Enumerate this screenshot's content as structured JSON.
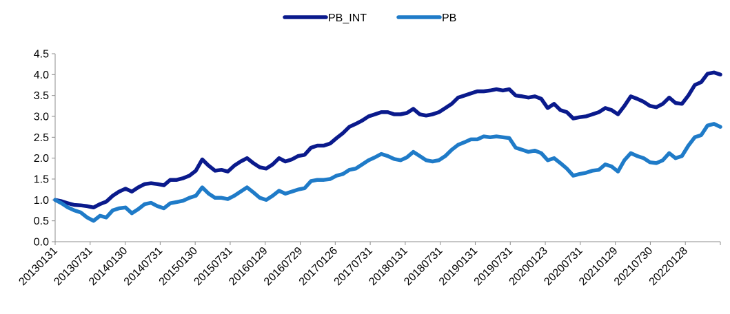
{
  "chart_data": {
    "type": "line",
    "title": "",
    "xlabel": "",
    "ylabel": "",
    "ylim": [
      0,
      4.5
    ],
    "yticks": [
      "0.0",
      "0.5",
      "1.0",
      "1.5",
      "2.0",
      "2.5",
      "3.0",
      "3.5",
      "4.0",
      "4.5"
    ],
    "xtick_labels": [
      "20130131",
      "20130731",
      "20140130",
      "20140731",
      "20150130",
      "20150731",
      "20160129",
      "20160729",
      "20170126",
      "20170731",
      "20180131",
      "20180731",
      "20190131",
      "20190731",
      "20200123",
      "20200731",
      "20210129",
      "20210730",
      "20220128"
    ],
    "grid": false,
    "legend_position": "top-center",
    "series": [
      {
        "name": "PB_INT",
        "color": "#0a1a8c",
        "values": [
          1.0,
          0.97,
          0.92,
          0.88,
          0.87,
          0.85,
          0.82,
          0.9,
          0.96,
          1.1,
          1.2,
          1.27,
          1.2,
          1.3,
          1.38,
          1.4,
          1.38,
          1.35,
          1.48,
          1.48,
          1.52,
          1.58,
          1.7,
          1.97,
          1.82,
          1.7,
          1.72,
          1.68,
          1.82,
          1.92,
          2.0,
          1.88,
          1.78,
          1.75,
          1.85,
          2.0,
          1.92,
          1.97,
          2.05,
          2.08,
          2.25,
          2.3,
          2.3,
          2.35,
          2.48,
          2.6,
          2.75,
          2.82,
          2.9,
          3.0,
          3.05,
          3.1,
          3.1,
          3.05,
          3.05,
          3.08,
          3.18,
          3.05,
          3.02,
          3.05,
          3.1,
          3.2,
          3.3,
          3.45,
          3.5,
          3.55,
          3.6,
          3.6,
          3.62,
          3.65,
          3.62,
          3.65,
          3.5,
          3.48,
          3.45,
          3.48,
          3.42,
          3.2,
          3.3,
          3.15,
          3.1,
          2.95,
          2.98,
          3.0,
          3.05,
          3.1,
          3.2,
          3.15,
          3.05,
          3.25,
          3.48,
          3.42,
          3.35,
          3.25,
          3.22,
          3.3,
          3.45,
          3.32,
          3.3,
          3.5,
          3.75,
          3.82,
          4.02,
          4.05,
          4.0
        ]
      },
      {
        "name": "PB",
        "color": "#1f7bc8",
        "values": [
          1.0,
          0.92,
          0.82,
          0.75,
          0.7,
          0.58,
          0.5,
          0.62,
          0.58,
          0.75,
          0.8,
          0.82,
          0.68,
          0.78,
          0.9,
          0.93,
          0.85,
          0.8,
          0.92,
          0.95,
          0.98,
          1.05,
          1.1,
          1.3,
          1.15,
          1.05,
          1.05,
          1.02,
          1.1,
          1.2,
          1.3,
          1.18,
          1.05,
          1.0,
          1.1,
          1.22,
          1.15,
          1.2,
          1.25,
          1.28,
          1.45,
          1.48,
          1.48,
          1.5,
          1.58,
          1.62,
          1.72,
          1.75,
          1.85,
          1.95,
          2.02,
          2.1,
          2.05,
          1.98,
          1.95,
          2.02,
          2.15,
          2.05,
          1.95,
          1.92,
          1.95,
          2.05,
          2.2,
          2.32,
          2.38,
          2.45,
          2.45,
          2.52,
          2.5,
          2.52,
          2.5,
          2.48,
          2.25,
          2.2,
          2.15,
          2.18,
          2.12,
          1.95,
          2.0,
          1.88,
          1.75,
          1.58,
          1.62,
          1.65,
          1.7,
          1.72,
          1.85,
          1.8,
          1.68,
          1.95,
          2.12,
          2.05,
          2.0,
          1.9,
          1.88,
          1.95,
          2.12,
          2.0,
          2.05,
          2.3,
          2.5,
          2.55,
          2.78,
          2.82,
          2.75
        ]
      }
    ]
  }
}
